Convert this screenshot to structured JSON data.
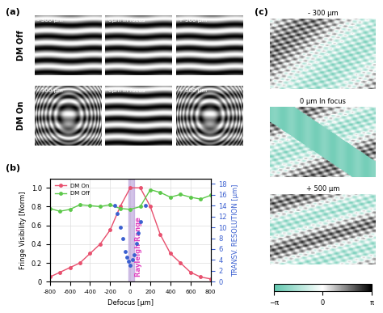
{
  "panel_a": {
    "label": "(a)",
    "rows": [
      "DM Off",
      "DM On"
    ],
    "columns": [
      "- 300 µm",
      "0µm In focus",
      "+ 500 µm"
    ]
  },
  "chart_data": {
    "type": "line",
    "title": "(b)",
    "x_label": "Defocus [µm]",
    "y_label": "Fringe Visibility [Norm]",
    "y2_label": "TRANSV. RESOLUTION [µm]",
    "xlim": [
      -800,
      800
    ],
    "xticks": [
      -800,
      -600,
      -400,
      -200,
      0,
      200,
      400,
      600,
      800
    ],
    "ylim": [
      0,
      1.1
    ],
    "yticks": [
      0,
      0.2,
      0.4,
      0.6,
      0.8,
      1.0
    ],
    "y2lim": [
      0,
      19
    ],
    "y2ticks": [
      0,
      2,
      4,
      6,
      8,
      10,
      12,
      14,
      16,
      18
    ],
    "grid": true,
    "legend": "upper left",
    "bands": [
      {
        "label": "Rayleigh Range",
        "x": [
          -20,
          40
        ]
      }
    ],
    "series": [
      {
        "name": "DM On",
        "color": "#e8506e",
        "marker": "o",
        "line_style": "solid",
        "x": [
          -800,
          -700,
          -600,
          -500,
          -400,
          -300,
          -200,
          -100,
          0,
          100,
          200,
          300,
          400,
          500,
          600,
          700,
          800
        ],
        "values": [
          0.05,
          0.1,
          0.15,
          0.2,
          0.3,
          0.4,
          0.55,
          0.8,
          1.0,
          1.0,
          0.8,
          0.5,
          0.3,
          0.2,
          0.1,
          0.05,
          0.03
        ]
      },
      {
        "name": "DM Off",
        "color": "#5cc84a",
        "marker": "o",
        "line_style": "solid",
        "x": [
          -800,
          -700,
          -600,
          -500,
          -400,
          -300,
          -200,
          -100,
          0,
          100,
          200,
          300,
          400,
          500,
          600,
          700,
          800
        ],
        "values": [
          0.78,
          0.75,
          0.77,
          0.82,
          0.81,
          0.8,
          0.82,
          0.78,
          0.77,
          0.8,
          0.98,
          0.95,
          0.9,
          0.93,
          0.9,
          0.88,
          0.92
        ]
      },
      {
        "type": "scatter",
        "axis": "y2",
        "color": "#3a5fd0",
        "marker": "o",
        "x": [
          -150,
          -130,
          -100,
          -70,
          -50,
          -30,
          -20,
          0,
          20,
          40,
          60,
          80,
          100,
          150
        ],
        "values": [
          14,
          12.5,
          10,
          8,
          5.5,
          4.5,
          3.8,
          3,
          4,
          5,
          7,
          9,
          11,
          14
        ]
      }
    ]
  },
  "panel_c": {
    "label": "(c)",
    "titles": [
      "- 300 µm",
      "0 µm In focus",
      "+ 500 µm"
    ],
    "colorbar": {
      "range": [
        -3.14159,
        3.14159
      ],
      "ticks": [
        {
          "value": -3.14159,
          "label": "−π"
        },
        0,
        {
          "value": 3.14159,
          "label": "π"
        }
      ]
    }
  }
}
